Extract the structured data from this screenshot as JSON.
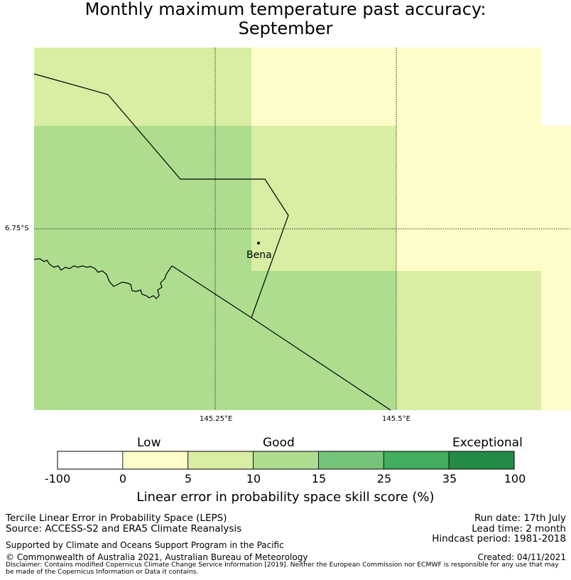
{
  "title": {
    "line1": "Monthly maximum temperature past accuracy:",
    "line2": "September"
  },
  "map": {
    "place": "Bena",
    "lat_label": "6.75°S",
    "lon_labels": [
      "145.25°E",
      "145.5°E"
    ],
    "cell_colors": {
      "5-10": "#d9eea3",
      "0-5": "#fefdca",
      "10-15": "#aedd90"
    }
  },
  "colorbar": {
    "headings": {
      "low": "Low",
      "good": "Good",
      "exceptional": "Exceptional"
    },
    "ticks": [
      "-100",
      "0",
      "5",
      "10",
      "15",
      "25",
      "35",
      "100"
    ],
    "colors": [
      "#ffffff",
      "#fefdca",
      "#d9eea3",
      "#aedd90",
      "#76c47a",
      "#42ad5c",
      "#238b45"
    ],
    "label": "Linear error in probability space skill score (%)"
  },
  "footer": {
    "left1": "Tercile Linear Error in Probability Space (LEPS)",
    "left2": "Source: ACCESS-S2 and ERA5 Climate Reanalysis",
    "support": "Supported by Climate and Oceans Support Program in the Pacific",
    "copyright": "© Commonwealth of Australia 2021, Australian Bureau of Meteorology",
    "run_date": "Run date: 17th July",
    "lead_time": "Lead time: 2 month",
    "hindcast": "Hindcast period: 1981-2018",
    "created": "Created: 04/11/2021",
    "disclaimer": "Disclaimer: Contains modified Copernicus Climate Change Service Information [2019]. Neither the European Commission nor ECMWF is responsible for any use that may be made of the Copernicus Information or Data it contains."
  }
}
